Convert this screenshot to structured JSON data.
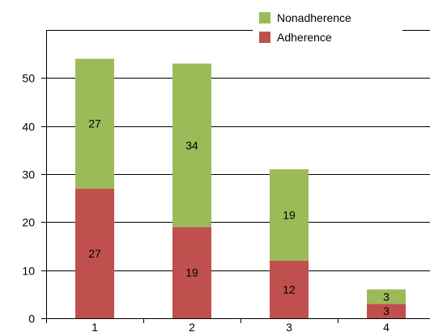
{
  "chart_data": {
    "type": "bar",
    "stacked": true,
    "categories": [
      "1",
      "2",
      "3",
      "4"
    ],
    "series": [
      {
        "name": "Adherence",
        "color": "#c0504d",
        "values": [
          27,
          19,
          12,
          3
        ]
      },
      {
        "name": "Nonadherence",
        "color": "#9bbb59",
        "values": [
          27,
          34,
          19,
          3
        ]
      }
    ],
    "ylim": [
      0,
      60
    ],
    "yticks": [
      0,
      10,
      20,
      30,
      40,
      50
    ],
    "grid": true,
    "legend_position": "top-right",
    "data_labels": true
  }
}
